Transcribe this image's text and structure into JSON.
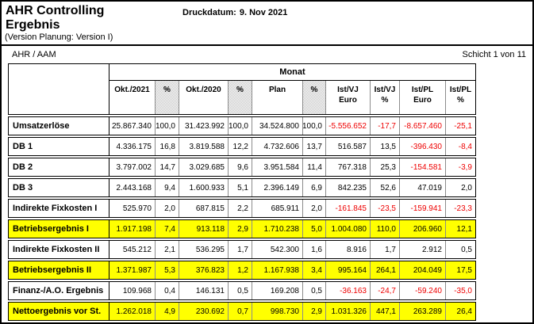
{
  "page": {
    "title_line1": "AHR Controlling",
    "title_line2": "Ergebnis",
    "subtitle": "(Version Planung: Version I)",
    "print_date_label": "Druckdatum:",
    "print_date_value": "9. Nov 2021",
    "org": "AHR / AAM",
    "page_indicator": "Schicht 1 von 11"
  },
  "colors": {
    "highlight": "#ffff00",
    "negative": "#ee0000"
  },
  "table": {
    "group_header": "Monat",
    "columns": [
      {
        "label": "Okt./2021",
        "dither": false
      },
      {
        "label": "%",
        "dither": true
      },
      {
        "label": "Okt./2020",
        "dither": false
      },
      {
        "label": "%",
        "dither": true
      },
      {
        "label": "Plan",
        "dither": false
      },
      {
        "label": "%",
        "dither": true
      },
      {
        "label": "Ist/VJ\nEuro",
        "dither": false
      },
      {
        "label": "Ist/VJ\n%",
        "dither": false
      },
      {
        "label": "Ist/PL\nEuro",
        "dither": false
      },
      {
        "label": "Ist/PL\n%",
        "dither": false
      }
    ],
    "rows": [
      {
        "label": "Umsatzerlöse",
        "highlight": false,
        "cells": [
          "25.867.340",
          "100,0",
          "31.423.992",
          "100,0",
          "34.524.800",
          "100,0",
          "-5.556.652",
          "-17,7",
          "-8.657.460",
          "-25,1"
        ]
      },
      {
        "label": "DB 1",
        "highlight": false,
        "cells": [
          "4.336.175",
          "16,8",
          "3.819.588",
          "12,2",
          "4.732.606",
          "13,7",
          "516.587",
          "13,5",
          "-396.430",
          "-8,4"
        ]
      },
      {
        "label": "DB 2",
        "highlight": false,
        "cells": [
          "3.797.002",
          "14,7",
          "3.029.685",
          "9,6",
          "3.951.584",
          "11,4",
          "767.318",
          "25,3",
          "-154.581",
          "-3,9"
        ]
      },
      {
        "label": "DB 3",
        "highlight": false,
        "cells": [
          "2.443.168",
          "9,4",
          "1.600.933",
          "5,1",
          "2.396.149",
          "6,9",
          "842.235",
          "52,6",
          "47.019",
          "2,0"
        ]
      },
      {
        "label": "Indirekte Fixkosten I",
        "highlight": false,
        "cells": [
          "525.970",
          "2,0",
          "687.815",
          "2,2",
          "685.911",
          "2,0",
          "-161.845",
          "-23,5",
          "-159.941",
          "-23,3"
        ]
      },
      {
        "label": "Betriebsergebnis I",
        "highlight": true,
        "cells": [
          "1.917.198",
          "7,4",
          "913.118",
          "2,9",
          "1.710.238",
          "5,0",
          "1.004.080",
          "110,0",
          "206.960",
          "12,1"
        ]
      },
      {
        "label": "Indirekte Fixkosten II",
        "highlight": false,
        "cells": [
          "545.212",
          "2,1",
          "536.295",
          "1,7",
          "542.300",
          "1,6",
          "8.916",
          "1,7",
          "2.912",
          "0,5"
        ]
      },
      {
        "label": "Betriebsergebnis II",
        "highlight": true,
        "cells": [
          "1.371.987",
          "5,3",
          "376.823",
          "1,2",
          "1.167.938",
          "3,4",
          "995.164",
          "264,1",
          "204.049",
          "17,5"
        ]
      },
      {
        "label": "Finanz-/A.O. Ergebnis",
        "highlight": false,
        "cells": [
          "109.968",
          "0,4",
          "146.131",
          "0,5",
          "169.208",
          "0,5",
          "-36.163",
          "-24,7",
          "-59.240",
          "-35,0"
        ]
      },
      {
        "label": "Nettoergebnis vor St.",
        "highlight": true,
        "cells": [
          "1.262.018",
          "4,9",
          "230.692",
          "0,7",
          "998.730",
          "2,9",
          "1.031.326",
          "447,1",
          "263.289",
          "26,4"
        ]
      }
    ]
  }
}
